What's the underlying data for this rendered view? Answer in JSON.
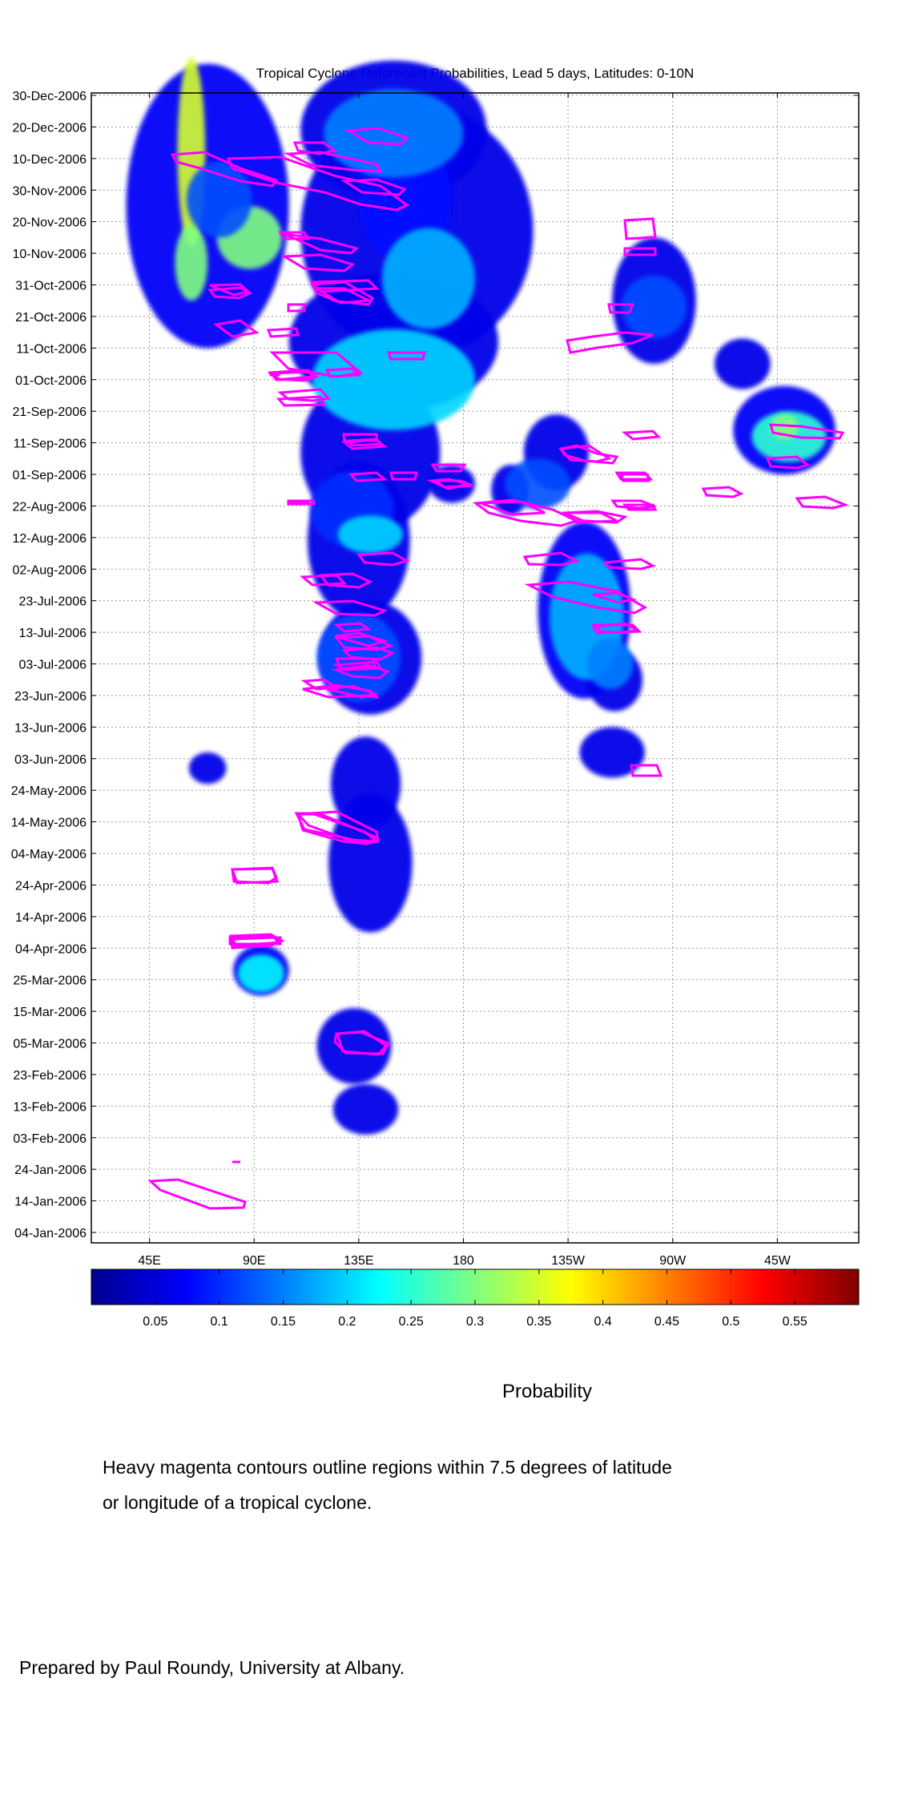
{
  "chart_data": {
    "type": "heatmap",
    "title": "Tropical Cyclone Reforecast Probabilities, Lead 5 days, Latitudes: 0-10N",
    "xlabel": "",
    "ylabel": "",
    "x_ticks": [
      {
        "label": "45E",
        "lon": 45
      },
      {
        "label": "90E",
        "lon": 90
      },
      {
        "label": "135E",
        "lon": 135
      },
      {
        "label": "180",
        "lon": 180
      },
      {
        "label": "135W",
        "lon": 225
      },
      {
        "label": "90W",
        "lon": 270
      },
      {
        "label": "45W",
        "lon": 315
      }
    ],
    "xlim": [
      20,
      350
    ],
    "y_ticks": [
      "04-Jan-2006",
      "14-Jan-2006",
      "24-Jan-2006",
      "03-Feb-2006",
      "13-Feb-2006",
      "23-Feb-2006",
      "05-Mar-2006",
      "15-Mar-2006",
      "25-Mar-2006",
      "04-Apr-2006",
      "14-Apr-2006",
      "24-Apr-2006",
      "04-May-2006",
      "14-May-2006",
      "24-May-2006",
      "03-Jun-2006",
      "13-Jun-2006",
      "23-Jun-2006",
      "03-Jul-2006",
      "13-Jul-2006",
      "23-Jul-2006",
      "02-Aug-2006",
      "12-Aug-2006",
      "22-Aug-2006",
      "01-Sep-2006",
      "11-Sep-2006",
      "21-Sep-2006",
      "01-Oct-2006",
      "11-Oct-2006",
      "21-Oct-2006",
      "31-Oct-2006",
      "10-Nov-2006",
      "20-Nov-2006",
      "30-Nov-2006",
      "10-Dec-2006",
      "20-Dec-2006",
      "30-Dec-2006"
    ],
    "ylim": [
      "04-Jan-2006",
      "30-Dec-2006"
    ],
    "grid": true,
    "colorbar": {
      "ticks": [
        "0.05",
        "0.1",
        "0.15",
        "0.2",
        "0.25",
        "0.3",
        "0.35",
        "0.4",
        "0.45",
        "0.5",
        "0.55"
      ],
      "range": [
        0,
        0.6
      ],
      "label": "Probability",
      "colormap": "jet"
    },
    "contour_color": "#ff00ff",
    "probability_regions": [
      {
        "lon": 63,
        "day": 345,
        "dlon": 6,
        "dday": 30,
        "p": 0.35
      },
      {
        "lon": 63,
        "day": 310,
        "dlon": 7,
        "dday": 12,
        "p": 0.3
      },
      {
        "lon": 88,
        "day": 318,
        "dlon": 14,
        "dday": 10,
        "p": 0.3
      },
      {
        "lon": 75,
        "day": 330,
        "dlon": 14,
        "dday": 12,
        "p": 0.12
      },
      {
        "lon": 150,
        "day": 351,
        "dlon": 30,
        "dday": 14,
        "p": 0.15
      },
      {
        "lon": 165,
        "day": 305,
        "dlon": 20,
        "dday": 16,
        "p": 0.18
      },
      {
        "lon": 150,
        "day": 273,
        "dlon": 35,
        "dday": 16,
        "p": 0.2
      },
      {
        "lon": 132,
        "day": 232,
        "dlon": 18,
        "dday": 12,
        "p": 0.1
      },
      {
        "lon": 140,
        "day": 224,
        "dlon": 14,
        "dday": 6,
        "p": 0.2
      },
      {
        "lon": 135,
        "day": 185,
        "dlon": 18,
        "dday": 14,
        "p": 0.12
      },
      {
        "lon": 93,
        "day": 85,
        "dlon": 10,
        "dday": 6,
        "p": 0.22
      },
      {
        "lon": 212,
        "day": 240,
        "dlon": 14,
        "dday": 8,
        "p": 0.12
      },
      {
        "lon": 233,
        "day": 198,
        "dlon": 16,
        "dday": 20,
        "p": 0.18
      },
      {
        "lon": 243,
        "day": 183,
        "dlon": 10,
        "dday": 8,
        "p": 0.15
      },
      {
        "lon": 262,
        "day": 296,
        "dlon": 14,
        "dday": 10,
        "p": 0.12
      },
      {
        "lon": 320,
        "day": 255,
        "dlon": 16,
        "dday": 8,
        "p": 0.25
      },
      {
        "lon": 318,
        "day": 258,
        "dlon": 6,
        "dday": 4,
        "p": 0.3
      }
    ]
  },
  "captions": {
    "colorbar_label": "Probability",
    "note_line1": "Heavy magenta contours outline regions within 7.5 degrees of latitude",
    "note_line2": "or longitude of a tropical cyclone.",
    "prepared_by": "Prepared by Paul Roundy, University at Albany."
  }
}
